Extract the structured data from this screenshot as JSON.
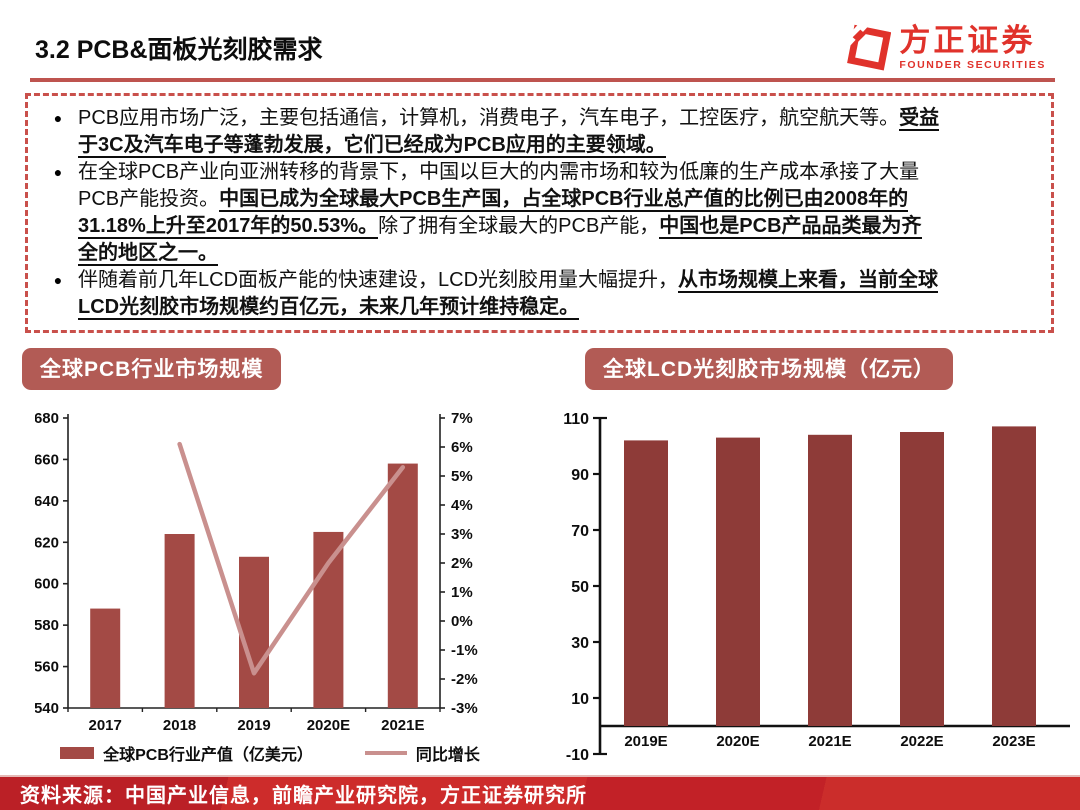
{
  "page": {
    "title": "3.2 PCB&面板光刻胶需求",
    "footer_source": "资料来源：中国产业信息，前瞻产业研究院，方正证券研究所"
  },
  "logo": {
    "cn": "方正证券",
    "en": "FOUNDER SECURITIES"
  },
  "bullets": [
    {
      "segments": [
        {
          "t": "PCB应用市场广泛，主要包括通信，计算机，消费电子，汽车电子，工控医疗，航空航天等。",
          "b": false
        },
        {
          "t": "受益\n于3C及汽车电子等蓬勃发展，它们已经成为PCB应用的主要领域。",
          "b": true
        }
      ]
    },
    {
      "segments": [
        {
          "t": "在全球PCB产业向亚洲转移的背景下，中国以巨大的内需市场和较为低廉的生产成本承接了大量\nPCB产能投资。",
          "b": false
        },
        {
          "t": "中国已成为全球最大PCB生产国，占全球PCB行业总产值的比例已由2008年的\n31.18%上升至2017年的50.53%。",
          "b": true
        },
        {
          "t": "除了拥有全球最大的PCB产能，",
          "b": false
        },
        {
          "t": "中国也是PCB产品品类最为齐\n全的地区之一。",
          "b": true
        }
      ]
    },
    {
      "segments": [
        {
          "t": "伴随着前几年LCD面板产能的快速建设，LCD光刻胶用量大幅提升，",
          "b": false
        },
        {
          "t": "从市场规模上来看，当前全球\nLCD光刻胶市场规模约百亿元，未来几年预计维持稳定。",
          "b": true
        }
      ]
    }
  ],
  "panels": [
    {
      "banner": "全球PCB行业市场规模"
    },
    {
      "banner": "全球LCD光刻胶市场规模（亿元）"
    }
  ],
  "legend": [
    {
      "label": "全球PCB行业产值（亿美元）",
      "swatch": "bar"
    },
    {
      "label": "同比增长",
      "swatch": "line"
    }
  ],
  "chart_data": [
    {
      "type": "bar",
      "subtype": "combo-bar-line",
      "title": "全球PCB行业市场规模",
      "categories": [
        "2017",
        "2018",
        "2019",
        "2020E",
        "2021E"
      ],
      "series": [
        {
          "name": "全球PCB行业产值（亿美元）",
          "type": "bar",
          "axis": "left",
          "values": [
            588,
            624,
            613,
            625,
            658
          ]
        },
        {
          "name": "同比增长",
          "type": "line",
          "axis": "right",
          "values": [
            null,
            6.1,
            -1.8,
            2.0,
            5.3
          ]
        }
      ],
      "axes": {
        "left": {
          "min": 540,
          "max": 680,
          "step": 20,
          "suffix": ""
        },
        "right": {
          "min": -3,
          "max": 7,
          "step": 1,
          "suffix": "%"
        }
      },
      "grid": false,
      "legend_position": "bottom"
    },
    {
      "type": "bar",
      "title": "全球LCD光刻胶市场规模（亿元）",
      "categories": [
        "2019E",
        "2020E",
        "2021E",
        "2022E",
        "2023E"
      ],
      "values": [
        102,
        103,
        104,
        105,
        107
      ],
      "yaxis": {
        "min": -10,
        "max": 110,
        "step": 20
      },
      "baseline": 0,
      "grid": false,
      "legend_position": "none"
    }
  ],
  "colors": {
    "logo": "#e0322b",
    "rule": "#be544f",
    "dash": "#c9504b",
    "banner": "#b25b55",
    "bar_left": "#a34a45",
    "bar_right": "#8e3b38",
    "line": "#c9908e",
    "axis": "#222222",
    "footer_bg": "#c42127"
  }
}
